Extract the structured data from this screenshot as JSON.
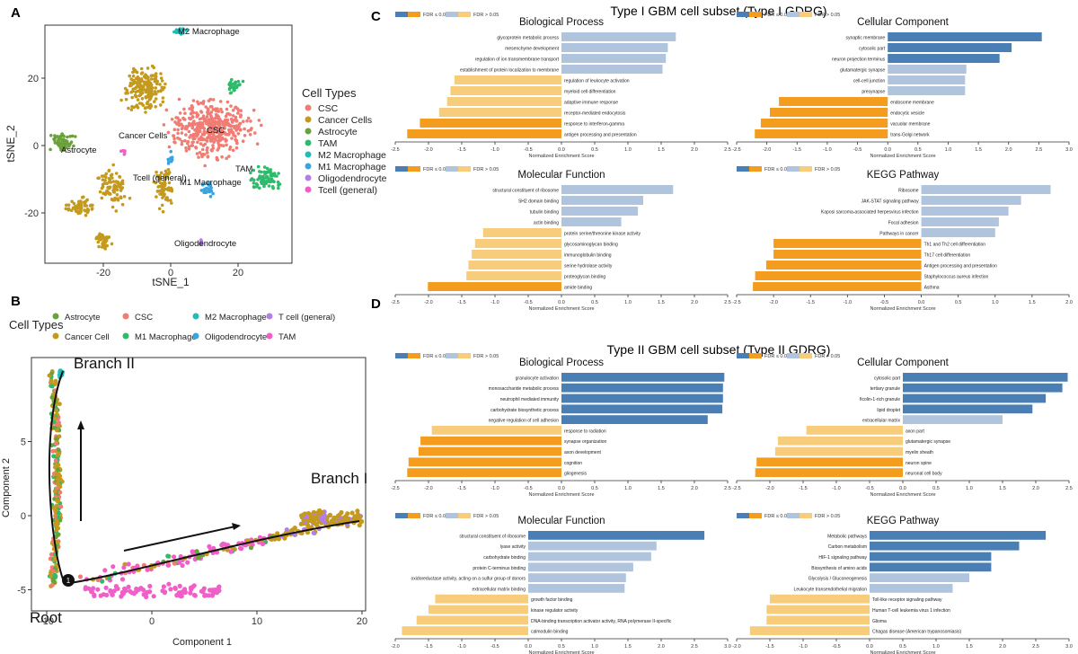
{
  "panel_labels": {
    "A": "A",
    "B": "B",
    "C": "C",
    "D": "D"
  },
  "colors": {
    "CSC": "#f07c74",
    "Cancer Cells": "#c49a1e",
    "Astrocyte": "#6aa13a",
    "TAM": "#2fba6c",
    "M2 Macrophage": "#22bcb8",
    "M1 Macrophage": "#3aa4e0",
    "Oligodendrocyte": "#b37ee8",
    "Tcell (general)": "#f05fc9",
    "fdr_sig": "#f39c1e",
    "fdr_sig_light": "#f7cd7b",
    "fdr_sig_blue": "#4a7fb5",
    "fdr_ns_blue": "#b0c4de"
  },
  "tsne": {
    "legend_title": "Cell Types",
    "legend": [
      "CSC",
      "Cancer Cells",
      "Astrocyte",
      "TAM",
      "M2 Macrophage",
      "M1 Macrophage",
      "Oligodendrocyte",
      "Tcell (general)"
    ],
    "cluster_labels": [
      "M2 Macrophage",
      "Cancer Cells",
      "CSC",
      "Astrocyte",
      "TAM",
      "Tcell (general)",
      "M1 Macrophage",
      "Oligodendrocyte"
    ],
    "xlabel": "tSNE_1",
    "ylabel": "tSNE_2",
    "xticks": [
      "-20",
      "0",
      "20"
    ],
    "yticks": [
      "20",
      "0",
      "-20"
    ]
  },
  "trajectory": {
    "legend_title": "Cell Types",
    "legend": [
      "Astrocyte",
      "CSC",
      "M2 Macrophage",
      "T cell (general)",
      "Cancer Cell",
      "M1 Macrophage",
      "Oligodendrocyte",
      "TAM"
    ],
    "branch1": "Branch I",
    "branch2": "Branch II",
    "root": "Root",
    "node": "1",
    "xlabel": "Component 1",
    "ylabel": "Component 2",
    "xticks": [
      "-10",
      "0",
      "10",
      "20"
    ],
    "yticks": [
      "5",
      "0",
      "-5"
    ]
  },
  "section_titles": {
    "type1": "Type I GBM cell subset (Type I GDRG)",
    "type2": "Type II GBM cell subset (Type II GDRG)"
  },
  "fdr_legend": {
    "sig": "FDR ≤ 0.05",
    "ns": "FDR > 0.05"
  },
  "nes_xlabel": "Normalized Enrichment Score",
  "chart_data": [
    {
      "type": "bar",
      "panel": "C",
      "title": "Biological Process",
      "xlabel": "Normalized Enrichment Score",
      "xlim": [
        -2.5,
        2.5
      ],
      "categories": [
        "glycoprotein metabolic process",
        "mesenchyme development",
        "regulation of ion transmembrane transport",
        "establishment of protein localization to membrane",
        "regulation of leukocyte activation",
        "myeloid cell differentiation",
        "adaptive immune response",
        "receptor-mediated endocytosis",
        "response to interferon-gamma",
        "antigen processing and presentation"
      ],
      "values": [
        1.72,
        1.6,
        1.57,
        1.52,
        -1.61,
        -1.67,
        -1.72,
        -1.84,
        -2.13,
        -2.32
      ],
      "significant": [
        false,
        false,
        false,
        false,
        false,
        false,
        false,
        false,
        true,
        true
      ]
    },
    {
      "type": "bar",
      "panel": "C",
      "title": "Cellular Component",
      "xlabel": "Normalized Enrichment Score",
      "xlim": [
        -2.5,
        3.0
      ],
      "categories": [
        "synaptic membrane",
        "cytosolic part",
        "neuron projection terminus",
        "glutamatergic synapse",
        "cell-cell junction",
        "presynapse",
        "endosome membrane",
        "endocytic vesicle",
        "vacuolar membrane",
        "trans-Golgi network"
      ],
      "values": [
        2.55,
        2.05,
        1.85,
        1.3,
        1.28,
        1.28,
        -1.8,
        -1.95,
        -2.1,
        -2.2
      ],
      "significant": [
        true,
        true,
        true,
        false,
        false,
        false,
        true,
        true,
        true,
        true
      ]
    },
    {
      "type": "bar",
      "panel": "C",
      "title": "Molecular Function",
      "xlabel": "Normalized Enrichment Score",
      "xlim": [
        -2.5,
        2.5
      ],
      "categories": [
        "structural constituent of ribosome",
        "SH2 domain binding",
        "tubulin binding",
        "actin binding",
        "protein serine/threonine kinase activity",
        "glycosaminoglycan binding",
        "immunoglobulin binding",
        "serine hydrolase activity",
        "proteoglycan binding",
        "amide binding"
      ],
      "values": [
        1.68,
        1.23,
        1.15,
        0.9,
        -1.18,
        -1.3,
        -1.35,
        -1.4,
        -1.43,
        -2.01
      ],
      "significant": [
        false,
        false,
        false,
        false,
        false,
        false,
        false,
        false,
        false,
        true
      ]
    },
    {
      "type": "bar",
      "panel": "C",
      "title": "KEGG Pathway",
      "xlabel": "Normalized Enrichment Score",
      "xlim": [
        -2.5,
        2.0
      ],
      "categories": [
        "Ribosome",
        "JAK-STAT signaling pathway",
        "Kaposi sarcoma-associated herpesvirus infection",
        "Focal adhesion",
        "Pathways in cancer",
        "Th1 and Th2 cell differentiation",
        "Th17 cell differentiation",
        "Antigen processing and presentation",
        "Staphylococcus aureus infection",
        "Asthma"
      ],
      "values": [
        1.75,
        1.35,
        1.18,
        1.05,
        1.0,
        -2.0,
        -2.0,
        -2.1,
        -2.25,
        -2.28
      ],
      "significant": [
        false,
        false,
        false,
        false,
        false,
        true,
        true,
        true,
        true,
        true
      ]
    },
    {
      "type": "bar",
      "panel": "D",
      "title": "Biological Process",
      "xlabel": "Normalized Enrichment Score",
      "xlim": [
        -2.5,
        2.5
      ],
      "categories": [
        "granulocyte activation",
        "monosaccharide metabolic process",
        "neutrophil mediated immunity",
        "carbohydrate biosynthetic process",
        "negative regulation of cell adhesion",
        "response to radiation",
        "synapse organization",
        "axon development",
        "cognition",
        "gliogenesis"
      ],
      "values": [
        2.45,
        2.43,
        2.43,
        2.42,
        2.2,
        -1.95,
        -2.12,
        -2.15,
        -2.3,
        -2.32
      ],
      "significant": [
        true,
        true,
        true,
        true,
        true,
        false,
        true,
        true,
        true,
        true
      ]
    },
    {
      "type": "bar",
      "panel": "D",
      "title": "Cellular Component",
      "xlabel": "Normalized Enrichment Score",
      "xlim": [
        -2.5,
        2.5
      ],
      "categories": [
        "cytosolic part",
        "tertiary granule",
        "ficolin-1-rich granule",
        "lipid droplet",
        "extracellular matrix",
        "axon part",
        "glutamatergic synapse",
        "myelin sheath",
        "neuron spine",
        "neuronal cell body"
      ],
      "values": [
        2.48,
        2.4,
        2.15,
        1.95,
        1.5,
        -1.45,
        -1.88,
        -1.92,
        -2.2,
        -2.22
      ],
      "significant": [
        true,
        true,
        true,
        true,
        false,
        false,
        false,
        false,
        true,
        true
      ]
    },
    {
      "type": "bar",
      "panel": "D",
      "title": "Molecular Function",
      "xlabel": "Normalized Enrichment Score",
      "xlim": [
        -2.0,
        3.0
      ],
      "categories": [
        "structural constituent of ribosome",
        "lyase activity",
        "carbohydrate binding",
        "protein C-terminus binding",
        "oxidoreductase activity, acting on a sulfur group of donors",
        "extracellular matrix binding",
        "growth factor binding",
        "kinase regulator activity",
        "DNA-binding transcription activator activity, RNA polymerase II-specific",
        "calmodulin binding"
      ],
      "values": [
        2.65,
        1.93,
        1.85,
        1.58,
        1.47,
        1.45,
        -1.4,
        -1.5,
        -1.68,
        -1.9
      ],
      "significant": [
        true,
        false,
        false,
        false,
        false,
        false,
        false,
        false,
        false,
        false
      ]
    },
    {
      "type": "bar",
      "panel": "D",
      "title": "KEGG Pathway",
      "xlabel": "Normalized Enrichment Score",
      "xlim": [
        -2.0,
        3.0
      ],
      "categories": [
        "Metabolic pathways",
        "Carbon metabolism",
        "HIF-1 signaling pathway",
        "Biosynthesis of amino acids",
        "Glycolysis / Gluconeogenesis",
        "Leukocyte transendothelial migration",
        "Toll-like receptor signaling pathway",
        "Human T-cell leukemia virus 1 infection",
        "Glioma",
        "Chagas disease (American trypanosomiasis)"
      ],
      "values": [
        2.65,
        2.25,
        1.83,
        1.83,
        1.5,
        1.25,
        -1.5,
        -1.55,
        -1.55,
        -1.8
      ],
      "significant": [
        true,
        true,
        true,
        true,
        false,
        false,
        false,
        false,
        false,
        false
      ]
    }
  ]
}
